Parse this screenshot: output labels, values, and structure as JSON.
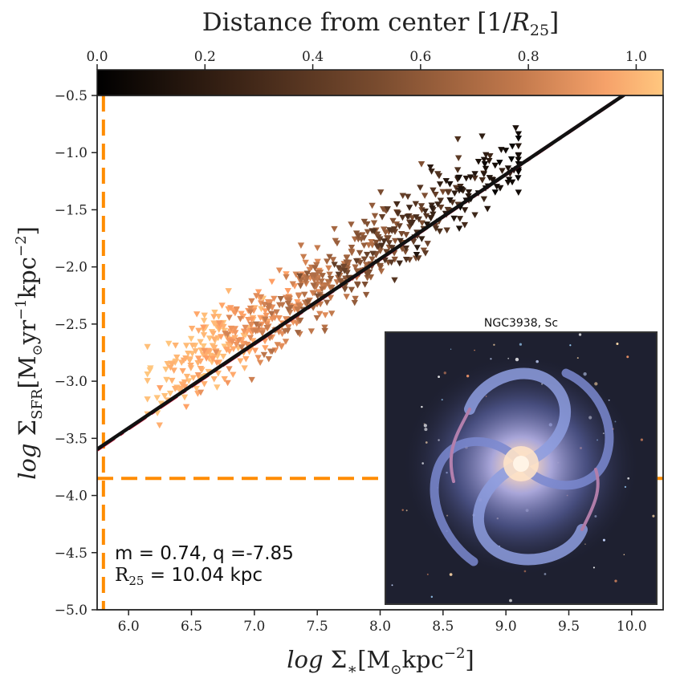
{
  "chart_data": {
    "type": "scatter",
    "xlabel": "log Σ*[M⊙kpc⁻²]",
    "ylabel": "log ΣSFR[M⊙yr⁻¹kpc⁻²]",
    "xlim": [
      5.75,
      10.25
    ],
    "ylim": [
      -5.0,
      -0.5
    ],
    "x_ticks": [
      "6.0",
      "6.5",
      "7.0",
      "7.5",
      "8.0",
      "8.5",
      "9.0",
      "9.5",
      "10.0"
    ],
    "y_ticks": [
      "−0.5",
      "−1.0",
      "−1.5",
      "−2.0",
      "−2.5",
      "−3.0",
      "−3.5",
      "−4.0",
      "−4.5",
      "−5.0"
    ],
    "colorbar": {
      "label": "Distance from center [1/R25]",
      "range": [
        0.0,
        1.05
      ],
      "ticks": [
        "0.0",
        "0.2",
        "0.4",
        "0.6",
        "0.8",
        "1.0"
      ],
      "colormap": "copper",
      "color_low": "#000000",
      "color_high": "#ffc77f"
    },
    "fit_line": {
      "slope": 0.74,
      "intercept": -7.85,
      "color": "#111111",
      "style": "solid"
    },
    "reference_line": {
      "x_start": 5.75,
      "y_start": -3.6,
      "x_end": 10.0,
      "y_end": -0.45,
      "color": "#dc143c",
      "style": "dash-dot"
    },
    "limit_lines": {
      "vertical_x": 5.8,
      "horizontal_y": -3.85,
      "color": "#ff8c00",
      "style": "dashed"
    },
    "scatter": {
      "marker": "triangle-down",
      "approx_count": 700,
      "distribution": "points along fit line, x from ~6.2 to ~9.1, colored by distance (outer = light, center = dark)"
    },
    "annotations": {
      "fit_text": "m = 0.74, q =-7.85",
      "r25_prefix": "R",
      "r25_sub": "25",
      "r25_value": " = 10.04 kpc"
    },
    "inset": {
      "title": "NGC3938, Sc"
    }
  }
}
